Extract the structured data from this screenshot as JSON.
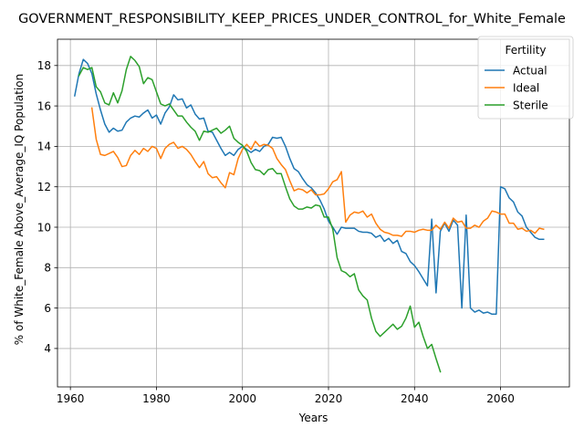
{
  "chart_data": {
    "type": "line",
    "title": "GOVERNMENT_RESPONSIBILITY_KEEP_PRICES_UNDER_CONTROL_for_White_Female",
    "xlabel": "Years",
    "ylabel": "% of White_Female Above_Average_IQ Population",
    "xlim": [
      1957,
      2076
    ],
    "ylim": [
      2.1,
      19.3
    ],
    "xticks": [
      1960,
      1980,
      2000,
      2020,
      2040,
      2060
    ],
    "yticks": [
      4,
      6,
      8,
      10,
      12,
      14,
      16,
      18
    ],
    "grid": true,
    "legend": {
      "title": "Fertility",
      "position": "top-right"
    },
    "series": [
      {
        "name": "Actual",
        "color": "#1f77b4",
        "points": [
          [
            1961,
            16.5
          ],
          [
            1962,
            17.6
          ],
          [
            1963,
            18.3
          ],
          [
            1964,
            18.1
          ],
          [
            1965,
            17.6
          ],
          [
            1966,
            16.6
          ],
          [
            1967,
            15.8
          ],
          [
            1968,
            15.1
          ],
          [
            1969,
            14.7
          ],
          [
            1970,
            14.9
          ],
          [
            1971,
            14.75
          ],
          [
            1972,
            14.8
          ],
          [
            1973,
            15.2
          ],
          [
            1974,
            15.4
          ],
          [
            1975,
            15.5
          ],
          [
            1976,
            15.45
          ],
          [
            1977,
            15.65
          ],
          [
            1978,
            15.8
          ],
          [
            1979,
            15.4
          ],
          [
            1980,
            15.55
          ],
          [
            1981,
            15.1
          ],
          [
            1982,
            15.65
          ],
          [
            1983,
            15.95
          ],
          [
            1984,
            16.55
          ],
          [
            1985,
            16.3
          ],
          [
            1986,
            16.35
          ],
          [
            1987,
            15.9
          ],
          [
            1988,
            16.05
          ],
          [
            1989,
            15.6
          ],
          [
            1990,
            15.35
          ],
          [
            1991,
            15.4
          ],
          [
            1992,
            14.75
          ],
          [
            1993,
            14.7
          ],
          [
            1994,
            14.3
          ],
          [
            1995,
            13.9
          ],
          [
            1996,
            13.55
          ],
          [
            1997,
            13.7
          ],
          [
            1998,
            13.55
          ],
          [
            1999,
            13.85
          ],
          [
            2000,
            14.0
          ],
          [
            2001,
            13.85
          ],
          [
            2002,
            13.7
          ],
          [
            2003,
            13.85
          ],
          [
            2004,
            13.75
          ],
          [
            2005,
            14.0
          ],
          [
            2006,
            14.1
          ],
          [
            2007,
            14.45
          ],
          [
            2008,
            14.4
          ],
          [
            2009,
            14.45
          ],
          [
            2010,
            14.0
          ],
          [
            2011,
            13.4
          ],
          [
            2012,
            12.9
          ],
          [
            2013,
            12.75
          ],
          [
            2014,
            12.4
          ],
          [
            2015,
            12.1
          ],
          [
            2016,
            11.95
          ],
          [
            2017,
            11.7
          ],
          [
            2018,
            11.35
          ],
          [
            2019,
            10.9
          ],
          [
            2020,
            10.3
          ],
          [
            2021,
            10.0
          ],
          [
            2022,
            9.65
          ],
          [
            2023,
            10.0
          ],
          [
            2024,
            9.95
          ],
          [
            2025,
            9.95
          ],
          [
            2026,
            9.95
          ],
          [
            2027,
            9.8
          ],
          [
            2028,
            9.75
          ],
          [
            2029,
            9.75
          ],
          [
            2030,
            9.7
          ],
          [
            2031,
            9.5
          ],
          [
            2032,
            9.6
          ],
          [
            2033,
            9.3
          ],
          [
            2034,
            9.45
          ],
          [
            2035,
            9.2
          ],
          [
            2036,
            9.35
          ],
          [
            2037,
            8.8
          ],
          [
            2038,
            8.7
          ],
          [
            2039,
            8.3
          ],
          [
            2040,
            8.1
          ],
          [
            2041,
            7.8
          ],
          [
            2042,
            7.45
          ],
          [
            2043,
            7.1
          ],
          [
            2044,
            10.4
          ],
          [
            2045,
            6.75
          ],
          [
            2046,
            9.8
          ],
          [
            2047,
            10.2
          ],
          [
            2048,
            9.8
          ],
          [
            2049,
            10.35
          ],
          [
            2050,
            10.1
          ],
          [
            2051,
            6.0
          ],
          [
            2052,
            10.6
          ],
          [
            2053,
            6.0
          ],
          [
            2054,
            5.8
          ],
          [
            2055,
            5.9
          ],
          [
            2056,
            5.75
          ],
          [
            2057,
            5.8
          ],
          [
            2058,
            5.7
          ],
          [
            2059,
            5.7
          ],
          [
            2060,
            12.0
          ],
          [
            2061,
            11.9
          ],
          [
            2062,
            11.45
          ],
          [
            2063,
            11.25
          ],
          [
            2064,
            10.75
          ],
          [
            2065,
            10.55
          ],
          [
            2066,
            10.0
          ],
          [
            2067,
            9.75
          ],
          [
            2068,
            9.5
          ],
          [
            2069,
            9.4
          ],
          [
            2070,
            9.4
          ]
        ]
      },
      {
        "name": "Ideal",
        "color": "#ff7f0e",
        "points": [
          [
            1965,
            15.9
          ],
          [
            1966,
            14.35
          ],
          [
            1967,
            13.6
          ],
          [
            1968,
            13.55
          ],
          [
            1969,
            13.65
          ],
          [
            1970,
            13.75
          ],
          [
            1971,
            13.45
          ],
          [
            1972,
            13.0
          ],
          [
            1973,
            13.05
          ],
          [
            1974,
            13.55
          ],
          [
            1975,
            13.8
          ],
          [
            1976,
            13.6
          ],
          [
            1977,
            13.9
          ],
          [
            1978,
            13.75
          ],
          [
            1979,
            14.0
          ],
          [
            1980,
            13.9
          ],
          [
            1981,
            13.4
          ],
          [
            1982,
            13.9
          ],
          [
            1983,
            14.1
          ],
          [
            1984,
            14.2
          ],
          [
            1985,
            13.9
          ],
          [
            1986,
            14.0
          ],
          [
            1987,
            13.85
          ],
          [
            1988,
            13.6
          ],
          [
            1989,
            13.25
          ],
          [
            1990,
            12.95
          ],
          [
            1991,
            13.25
          ],
          [
            1992,
            12.65
          ],
          [
            1993,
            12.45
          ],
          [
            1994,
            12.5
          ],
          [
            1995,
            12.2
          ],
          [
            1996,
            11.95
          ],
          [
            1997,
            12.7
          ],
          [
            1998,
            12.6
          ],
          [
            1999,
            13.4
          ],
          [
            2000,
            13.85
          ],
          [
            2001,
            14.1
          ],
          [
            2002,
            13.85
          ],
          [
            2003,
            14.25
          ],
          [
            2004,
            14.0
          ],
          [
            2005,
            14.1
          ],
          [
            2006,
            14.05
          ],
          [
            2007,
            13.9
          ],
          [
            2008,
            13.4
          ],
          [
            2009,
            13.1
          ],
          [
            2010,
            12.85
          ],
          [
            2011,
            12.3
          ],
          [
            2012,
            11.8
          ],
          [
            2013,
            11.9
          ],
          [
            2014,
            11.85
          ],
          [
            2015,
            11.7
          ],
          [
            2016,
            11.85
          ],
          [
            2017,
            11.6
          ],
          [
            2018,
            11.6
          ],
          [
            2019,
            11.65
          ],
          [
            2020,
            11.9
          ],
          [
            2021,
            12.25
          ],
          [
            2022,
            12.35
          ],
          [
            2023,
            12.75
          ],
          [
            2024,
            10.25
          ],
          [
            2025,
            10.6
          ],
          [
            2026,
            10.75
          ],
          [
            2027,
            10.7
          ],
          [
            2028,
            10.8
          ],
          [
            2029,
            10.5
          ],
          [
            2030,
            10.65
          ],
          [
            2031,
            10.2
          ],
          [
            2032,
            9.9
          ],
          [
            2033,
            9.75
          ],
          [
            2034,
            9.7
          ],
          [
            2035,
            9.6
          ],
          [
            2036,
            9.6
          ],
          [
            2037,
            9.55
          ],
          [
            2038,
            9.8
          ],
          [
            2039,
            9.8
          ],
          [
            2040,
            9.75
          ],
          [
            2041,
            9.85
          ],
          [
            2042,
            9.9
          ],
          [
            2043,
            9.85
          ],
          [
            2044,
            9.85
          ],
          [
            2045,
            10.1
          ],
          [
            2046,
            9.9
          ],
          [
            2047,
            10.25
          ],
          [
            2048,
            9.95
          ],
          [
            2049,
            10.45
          ],
          [
            2050,
            10.25
          ],
          [
            2051,
            10.3
          ],
          [
            2052,
            9.95
          ],
          [
            2053,
            9.95
          ],
          [
            2054,
            10.1
          ],
          [
            2055,
            10.0
          ],
          [
            2056,
            10.3
          ],
          [
            2057,
            10.45
          ],
          [
            2058,
            10.8
          ],
          [
            2059,
            10.75
          ],
          [
            2060,
            10.65
          ],
          [
            2061,
            10.65
          ],
          [
            2062,
            10.2
          ],
          [
            2063,
            10.2
          ],
          [
            2064,
            9.9
          ],
          [
            2065,
            9.95
          ],
          [
            2066,
            9.8
          ],
          [
            2067,
            9.85
          ],
          [
            2068,
            9.7
          ],
          [
            2069,
            9.95
          ],
          [
            2070,
            9.9
          ]
        ]
      },
      {
        "name": "Sterile",
        "color": "#2ca02c",
        "points": [
          [
            1962,
            17.5
          ],
          [
            1963,
            17.9
          ],
          [
            1964,
            17.8
          ],
          [
            1965,
            17.9
          ],
          [
            1966,
            16.95
          ],
          [
            1967,
            16.7
          ],
          [
            1968,
            16.15
          ],
          [
            1969,
            16.05
          ],
          [
            1970,
            16.65
          ],
          [
            1971,
            16.15
          ],
          [
            1972,
            16.75
          ],
          [
            1973,
            17.8
          ],
          [
            1974,
            18.45
          ],
          [
            1975,
            18.25
          ],
          [
            1976,
            17.95
          ],
          [
            1977,
            17.1
          ],
          [
            1978,
            17.4
          ],
          [
            1979,
            17.3
          ],
          [
            1980,
            16.7
          ],
          [
            1981,
            16.1
          ],
          [
            1982,
            16.0
          ],
          [
            1983,
            16.1
          ],
          [
            1984,
            15.8
          ],
          [
            1985,
            15.5
          ],
          [
            1986,
            15.5
          ],
          [
            1987,
            15.2
          ],
          [
            1988,
            14.95
          ],
          [
            1989,
            14.75
          ],
          [
            1990,
            14.3
          ],
          [
            1991,
            14.75
          ],
          [
            1992,
            14.7
          ],
          [
            1993,
            14.8
          ],
          [
            1994,
            14.9
          ],
          [
            1995,
            14.65
          ],
          [
            1996,
            14.8
          ],
          [
            1997,
            15.0
          ],
          [
            1998,
            14.4
          ],
          [
            1999,
            14.2
          ],
          [
            2000,
            14.05
          ],
          [
            2001,
            13.75
          ],
          [
            2002,
            13.2
          ],
          [
            2003,
            12.85
          ],
          [
            2004,
            12.8
          ],
          [
            2005,
            12.6
          ],
          [
            2006,
            12.85
          ],
          [
            2007,
            12.9
          ],
          [
            2008,
            12.65
          ],
          [
            2009,
            12.65
          ],
          [
            2010,
            12.0
          ],
          [
            2011,
            11.4
          ],
          [
            2012,
            11.05
          ],
          [
            2013,
            10.9
          ],
          [
            2014,
            10.9
          ],
          [
            2015,
            11.0
          ],
          [
            2016,
            10.95
          ],
          [
            2017,
            11.1
          ],
          [
            2018,
            11.05
          ],
          [
            2019,
            10.5
          ],
          [
            2020,
            10.5
          ],
          [
            2021,
            9.9
          ],
          [
            2022,
            8.5
          ],
          [
            2023,
            7.85
          ],
          [
            2024,
            7.75
          ],
          [
            2025,
            7.55
          ],
          [
            2026,
            7.7
          ],
          [
            2027,
            6.9
          ],
          [
            2028,
            6.6
          ],
          [
            2029,
            6.4
          ],
          [
            2030,
            5.5
          ],
          [
            2031,
            4.85
          ],
          [
            2032,
            4.6
          ],
          [
            2033,
            4.8
          ],
          [
            2034,
            5.0
          ],
          [
            2035,
            5.2
          ],
          [
            2036,
            4.95
          ],
          [
            2037,
            5.1
          ],
          [
            2038,
            5.5
          ],
          [
            2039,
            6.1
          ],
          [
            2040,
            5.05
          ],
          [
            2041,
            5.3
          ],
          [
            2042,
            4.6
          ],
          [
            2043,
            4.0
          ],
          [
            2044,
            4.2
          ],
          [
            2045,
            3.5
          ],
          [
            2046,
            2.85
          ]
        ]
      }
    ]
  }
}
